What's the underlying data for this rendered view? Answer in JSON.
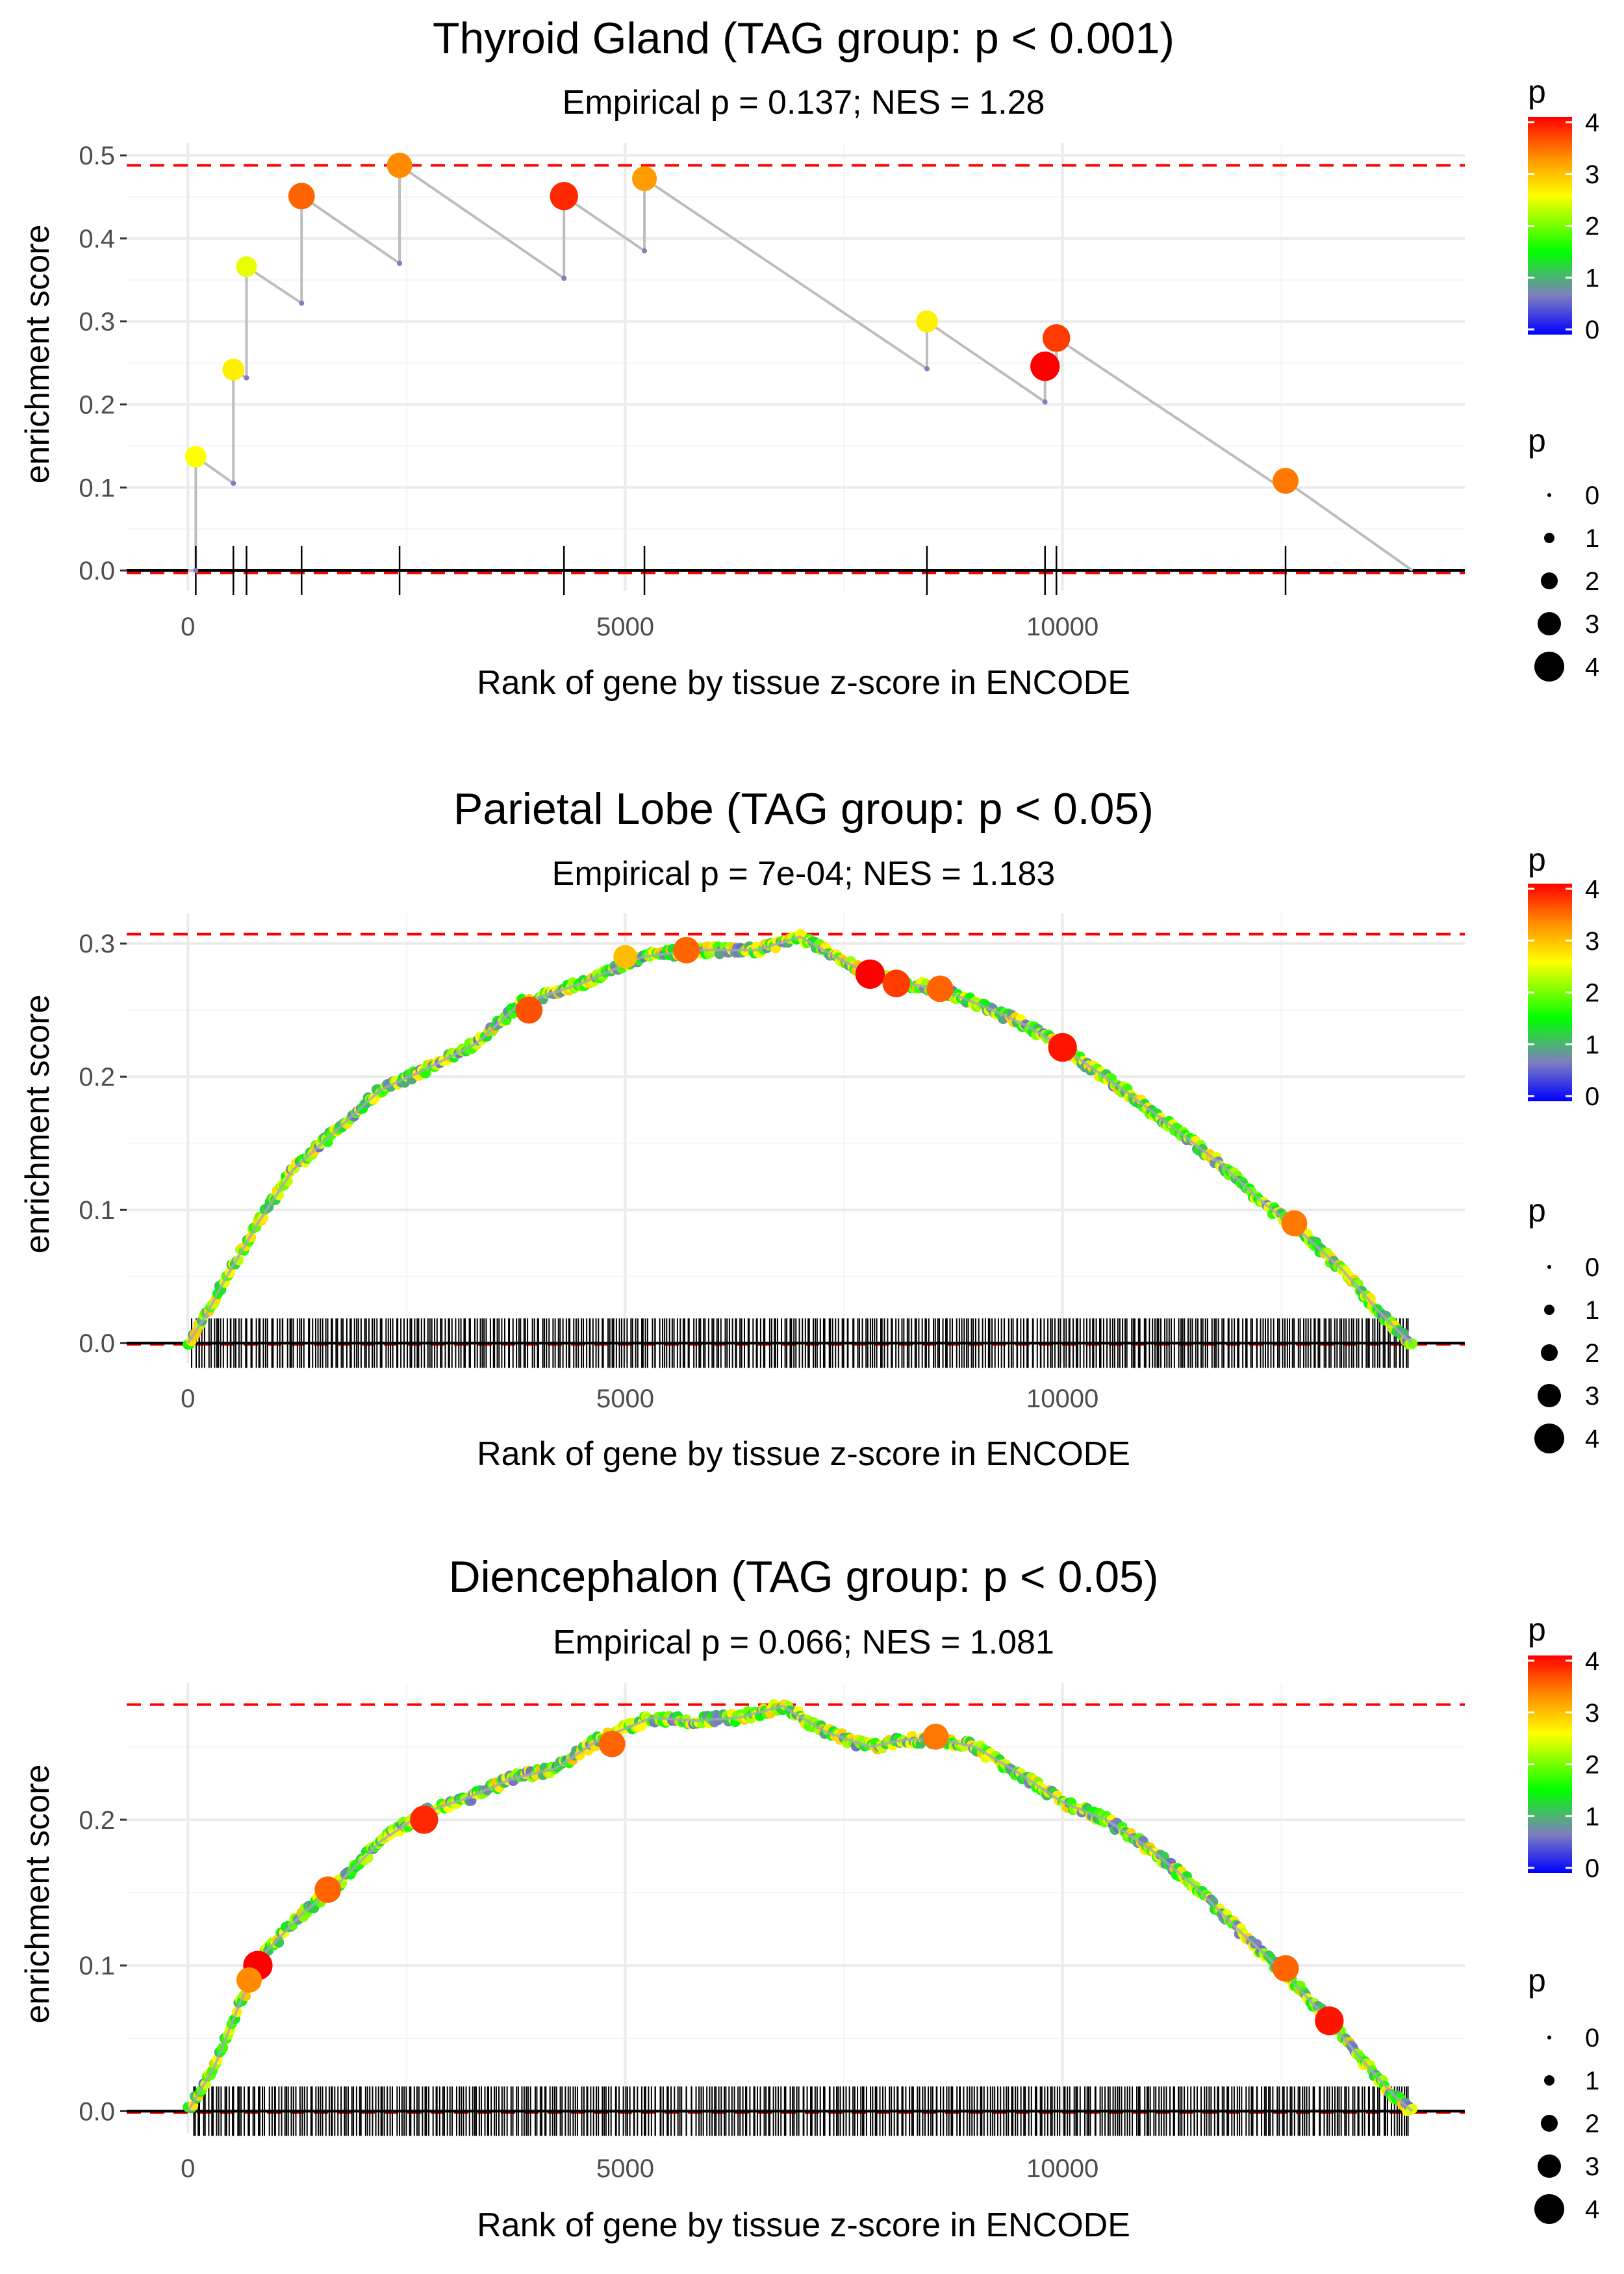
{
  "colors": {
    "ref_line": "#ff0000",
    "path": "#bdbdbd",
    "grid": "#ebebeb",
    "axis_text": "#4d4d4d",
    "gradient": [
      "#0000ff",
      "#7f7fbf",
      "#00ff00",
      "#ffff00",
      "#ff0000"
    ]
  },
  "chart_data": [
    {
      "type": "line",
      "title": "Thyroid Gland (TAG group: p < 0.001)",
      "subtitle": "Empirical p = 0.137; NES = 1.28",
      "xlabel": "Rank of gene by tissue z-score in ENCODE",
      "ylabel": "enrichment score",
      "xlim": [
        -700,
        14600
      ],
      "ylim": [
        -0.025,
        0.515
      ],
      "xticks": [
        0,
        5000,
        10000
      ],
      "xtick_labels": [
        "0",
        "5000",
        "10000"
      ],
      "yticks": [
        0,
        0.1,
        0.2,
        0.3,
        0.4,
        0.5
      ],
      "ytick_labels": [
        "0.0",
        "0.1",
        "0.2",
        "0.3",
        "0.4",
        "0.5"
      ],
      "ref_lines": [
        0.488,
        -0.003
      ],
      "max_rank": 14000,
      "hits": [
        {
          "rank": 90,
          "before": 0.0,
          "es": 0.137,
          "p": 2.6
        },
        {
          "rank": 520,
          "before": 0.105,
          "es": 0.242,
          "p": 2.7
        },
        {
          "rank": 670,
          "before": 0.232,
          "es": 0.366,
          "p": 2.5
        },
        {
          "rank": 1300,
          "before": 0.322,
          "es": 0.451,
          "p": 3.5
        },
        {
          "rank": 2420,
          "before": 0.37,
          "es": 0.488,
          "p": 3.3
        },
        {
          "rank": 4300,
          "before": 0.352,
          "es": 0.451,
          "p": 3.8
        },
        {
          "rank": 5220,
          "before": 0.385,
          "es": 0.472,
          "p": 3.2
        },
        {
          "rank": 8450,
          "before": 0.243,
          "es": 0.3,
          "p": 2.7
        },
        {
          "rank": 9800,
          "before": 0.203,
          "es": 0.246,
          "p": 4.0
        },
        {
          "rank": 9930,
          "before": 0.244,
          "es": 0.28,
          "p": 3.7
        },
        {
          "rank": 12550,
          "before": 0.096,
          "es": 0.108,
          "p": 3.4
        }
      ],
      "legend": {
        "color_title": "p",
        "color_ticks": [
          "0",
          "1",
          "2",
          "3",
          "4"
        ],
        "size_title": "p",
        "size_labels": [
          "0",
          "1",
          "2",
          "3",
          "4"
        ]
      }
    },
    {
      "type": "line",
      "title": "Parietal Lobe (TAG group: p < 0.05)",
      "subtitle": "Empirical p = 7e-04; NES = 1.183",
      "xlabel": "Rank of gene by tissue z-score in ENCODE",
      "ylabel": "enrichment score",
      "xlim": [
        -700,
        14600
      ],
      "ylim": [
        -0.015,
        0.323
      ],
      "xticks": [
        0,
        5000,
        10000
      ],
      "xtick_labels": [
        "0",
        "5000",
        "10000"
      ],
      "yticks": [
        0,
        0.1,
        0.2,
        0.3
      ],
      "ytick_labels": [
        "0.0",
        "0.1",
        "0.2",
        "0.3"
      ],
      "ref_lines": [
        0.307,
        -0.001
      ],
      "max_rank": 14000,
      "curve": [
        [
          0,
          0
        ],
        [
          200,
          0.02
        ],
        [
          400,
          0.045
        ],
        [
          800,
          0.09
        ],
        [
          1200,
          0.13
        ],
        [
          1700,
          0.16
        ],
        [
          2200,
          0.19
        ],
        [
          2700,
          0.205
        ],
        [
          3300,
          0.225
        ],
        [
          3800,
          0.255
        ],
        [
          4500,
          0.27
        ],
        [
          5200,
          0.29
        ],
        [
          5800,
          0.295
        ],
        [
          6500,
          0.295
        ],
        [
          7000,
          0.305
        ],
        [
          7400,
          0.29
        ],
        [
          7800,
          0.277
        ],
        [
          8200,
          0.27
        ],
        [
          8600,
          0.266
        ],
        [
          9200,
          0.25
        ],
        [
          9600,
          0.238
        ],
        [
          10000,
          0.222
        ],
        [
          10700,
          0.19
        ],
        [
          11300,
          0.16
        ],
        [
          11800,
          0.135
        ],
        [
          12300,
          0.105
        ],
        [
          12700,
          0.085
        ],
        [
          13200,
          0.055
        ],
        [
          13600,
          0.025
        ],
        [
          13900,
          0.005
        ],
        [
          14000,
          0
        ]
      ],
      "rug_density": 470,
      "highlights": [
        {
          "rank": 3900,
          "es": 0.25,
          "p": 3.6
        },
        {
          "rank": 5000,
          "es": 0.29,
          "p": 3.0
        },
        {
          "rank": 5700,
          "es": 0.295,
          "p": 3.5
        },
        {
          "rank": 7800,
          "es": 0.277,
          "p": 4.0
        },
        {
          "rank": 8100,
          "es": 0.27,
          "p": 3.7
        },
        {
          "rank": 8600,
          "es": 0.266,
          "p": 3.5
        },
        {
          "rank": 10000,
          "es": 0.222,
          "p": 3.9
        },
        {
          "rank": 12650,
          "es": 0.09,
          "p": 3.4
        }
      ],
      "legend": {
        "color_title": "p",
        "color_ticks": [
          "0",
          "1",
          "2",
          "3",
          "4"
        ],
        "size_title": "p",
        "size_labels": [
          "0",
          "1",
          "2",
          "3",
          "4"
        ]
      }
    },
    {
      "type": "line",
      "title": "Diencephalon (TAG group: p < 0.05)",
      "subtitle": "Empirical p = 0.066; NES = 1.081",
      "xlabel": "Rank of gene by tissue z-score in ENCODE",
      "ylabel": "enrichment score",
      "xlim": [
        -700,
        14600
      ],
      "ylim": [
        -0.015,
        0.294
      ],
      "xticks": [
        0,
        5000,
        10000
      ],
      "xtick_labels": [
        "0",
        "5000",
        "10000"
      ],
      "yticks": [
        0,
        0.1,
        0.2
      ],
      "ytick_labels": [
        "0.0",
        "0.1",
        "0.2"
      ],
      "ref_lines": [
        0.279,
        -0.001
      ],
      "max_rank": 14000,
      "curve": [
        [
          0,
          0
        ],
        [
          300,
          0.03
        ],
        [
          600,
          0.075
        ],
        [
          900,
          0.11
        ],
        [
          1300,
          0.135
        ],
        [
          1700,
          0.155
        ],
        [
          2200,
          0.185
        ],
        [
          2700,
          0.205
        ],
        [
          3200,
          0.215
        ],
        [
          3700,
          0.228
        ],
        [
          4200,
          0.235
        ],
        [
          4700,
          0.255
        ],
        [
          5300,
          0.27
        ],
        [
          5800,
          0.268
        ],
        [
          6300,
          0.27
        ],
        [
          6800,
          0.278
        ],
        [
          7300,
          0.26
        ],
        [
          7800,
          0.25
        ],
        [
          8200,
          0.255
        ],
        [
          8600,
          0.255
        ],
        [
          9000,
          0.25
        ],
        [
          9500,
          0.232
        ],
        [
          10000,
          0.212
        ],
        [
          10500,
          0.2
        ],
        [
          11000,
          0.18
        ],
        [
          11500,
          0.155
        ],
        [
          12000,
          0.125
        ],
        [
          12500,
          0.097
        ],
        [
          13000,
          0.065
        ],
        [
          13500,
          0.03
        ],
        [
          13800,
          0.01
        ],
        [
          14000,
          0
        ]
      ],
      "rug_density": 470,
      "highlights": [
        {
          "rank": 800,
          "es": 0.1,
          "p": 4.0
        },
        {
          "rank": 700,
          "es": 0.09,
          "p": 3.3
        },
        {
          "rank": 1600,
          "es": 0.152,
          "p": 3.5
        },
        {
          "rank": 2700,
          "es": 0.2,
          "p": 3.8
        },
        {
          "rank": 4850,
          "es": 0.252,
          "p": 3.5
        },
        {
          "rank": 8550,
          "es": 0.257,
          "p": 3.4
        },
        {
          "rank": 12550,
          "es": 0.098,
          "p": 3.5
        },
        {
          "rank": 13050,
          "es": 0.062,
          "p": 3.9
        }
      ],
      "legend": {
        "color_title": "p",
        "color_ticks": [
          "0",
          "1",
          "2",
          "3",
          "4"
        ],
        "size_title": "p",
        "size_labels": [
          "0",
          "1",
          "2",
          "3",
          "4"
        ]
      }
    }
  ]
}
